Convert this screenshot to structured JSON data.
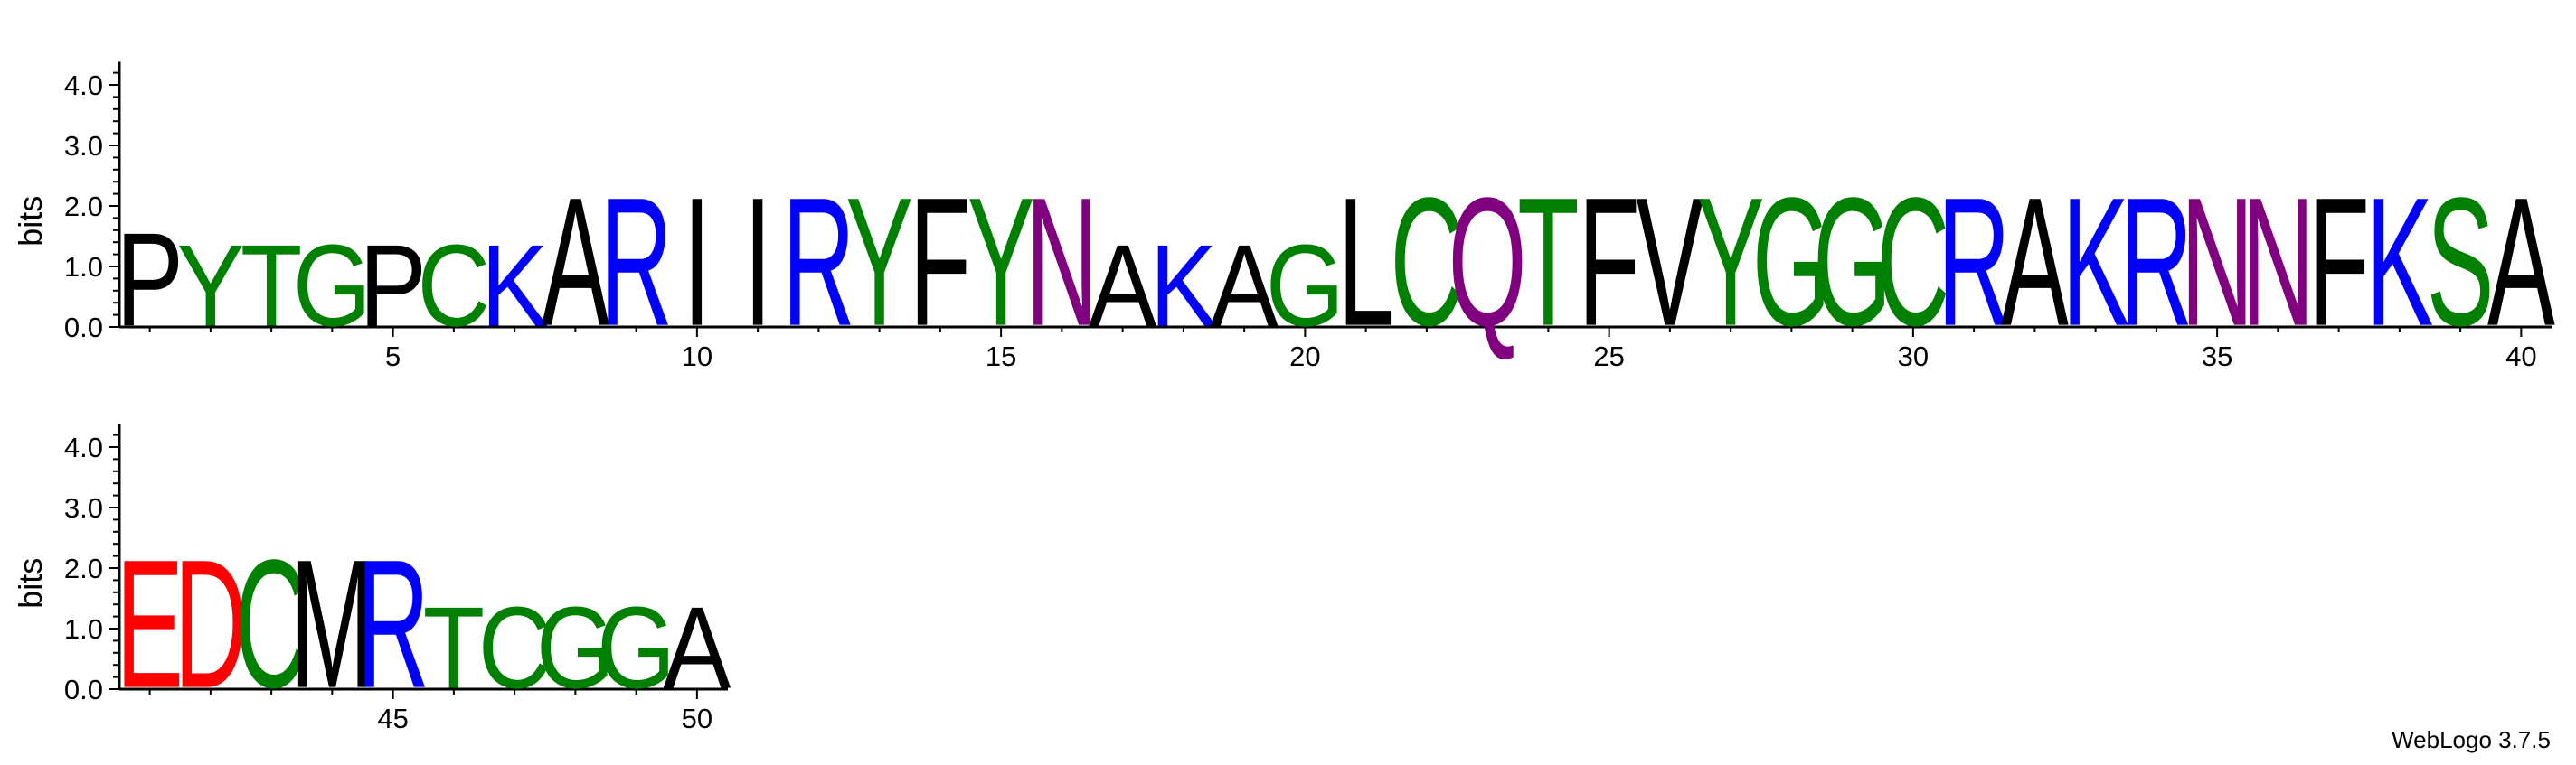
{
  "chart_data": {
    "type": "sequence-logo",
    "ylabel": "bits",
    "y_ticks": [
      "0.0",
      "1.0",
      "2.0",
      "3.0",
      "4.0"
    ],
    "ylim": [
      0,
      4.32
    ],
    "x_tick_values": [
      5,
      10,
      15,
      20,
      25,
      30,
      35,
      40,
      45,
      50
    ],
    "rows": [
      {
        "start": 1,
        "end": 40
      },
      {
        "start": 41,
        "end": 50
      }
    ],
    "colors": {
      "black": "#000000",
      "blue": "#0000ff",
      "green": "#008000",
      "purple": "#800080",
      "red": "#ff0000"
    },
    "positions": [
      {
        "pos": 1,
        "letter": "P",
        "color": "black",
        "bits": 1.6
      },
      {
        "pos": 2,
        "letter": "Y",
        "color": "green",
        "bits": 1.4
      },
      {
        "pos": 3,
        "letter": "T",
        "color": "green",
        "bits": 1.4
      },
      {
        "pos": 4,
        "letter": "G",
        "color": "green",
        "bits": 1.4
      },
      {
        "pos": 5,
        "letter": "P",
        "color": "black",
        "bits": 1.4
      },
      {
        "pos": 6,
        "letter": "C",
        "color": "green",
        "bits": 1.4
      },
      {
        "pos": 7,
        "letter": "K",
        "color": "blue",
        "bits": 1.4
      },
      {
        "pos": 8,
        "letter": "A",
        "color": "black",
        "bits": 2.2
      },
      {
        "pos": 9,
        "letter": "R",
        "color": "blue",
        "bits": 2.2
      },
      {
        "pos": 10,
        "letter": "I",
        "color": "black",
        "bits": 2.2
      },
      {
        "pos": 11,
        "letter": "I",
        "color": "black",
        "bits": 2.2
      },
      {
        "pos": 12,
        "letter": "R",
        "color": "blue",
        "bits": 2.2
      },
      {
        "pos": 13,
        "letter": "Y",
        "color": "green",
        "bits": 2.2
      },
      {
        "pos": 14,
        "letter": "F",
        "color": "black",
        "bits": 2.2
      },
      {
        "pos": 15,
        "letter": "Y",
        "color": "green",
        "bits": 2.2
      },
      {
        "pos": 16,
        "letter": "N",
        "color": "purple",
        "bits": 2.2
      },
      {
        "pos": 17,
        "letter": "A",
        "color": "black",
        "bits": 1.4
      },
      {
        "pos": 18,
        "letter": "K",
        "color": "blue",
        "bits": 1.4
      },
      {
        "pos": 19,
        "letter": "A",
        "color": "black",
        "bits": 1.4
      },
      {
        "pos": 20,
        "letter": "G",
        "color": "green",
        "bits": 1.4
      },
      {
        "pos": 21,
        "letter": "L",
        "color": "black",
        "bits": 2.2
      },
      {
        "pos": 22,
        "letter": "C",
        "color": "green",
        "bits": 2.2
      },
      {
        "pos": 23,
        "letter": "Q",
        "color": "purple",
        "bits": 2.2
      },
      {
        "pos": 24,
        "letter": "T",
        "color": "green",
        "bits": 2.2
      },
      {
        "pos": 25,
        "letter": "F",
        "color": "black",
        "bits": 2.2
      },
      {
        "pos": 26,
        "letter": "V",
        "color": "black",
        "bits": 2.2
      },
      {
        "pos": 27,
        "letter": "Y",
        "color": "green",
        "bits": 2.2
      },
      {
        "pos": 28,
        "letter": "G",
        "color": "green",
        "bits": 2.2
      },
      {
        "pos": 29,
        "letter": "G",
        "color": "green",
        "bits": 2.2
      },
      {
        "pos": 30,
        "letter": "C",
        "color": "green",
        "bits": 2.2
      },
      {
        "pos": 31,
        "letter": "R",
        "color": "blue",
        "bits": 2.2
      },
      {
        "pos": 32,
        "letter": "A",
        "color": "black",
        "bits": 2.2
      },
      {
        "pos": 33,
        "letter": "K",
        "color": "blue",
        "bits": 2.2
      },
      {
        "pos": 34,
        "letter": "R",
        "color": "blue",
        "bits": 2.2
      },
      {
        "pos": 35,
        "letter": "N",
        "color": "purple",
        "bits": 2.2
      },
      {
        "pos": 36,
        "letter": "N",
        "color": "purple",
        "bits": 2.2
      },
      {
        "pos": 37,
        "letter": "F",
        "color": "black",
        "bits": 2.2
      },
      {
        "pos": 38,
        "letter": "K",
        "color": "blue",
        "bits": 2.2
      },
      {
        "pos": 39,
        "letter": "S",
        "color": "green",
        "bits": 2.2
      },
      {
        "pos": 40,
        "letter": "A",
        "color": "black",
        "bits": 2.2
      },
      {
        "pos": 41,
        "letter": "E",
        "color": "red",
        "bits": 2.2
      },
      {
        "pos": 42,
        "letter": "D",
        "color": "red",
        "bits": 2.2
      },
      {
        "pos": 43,
        "letter": "C",
        "color": "green",
        "bits": 2.2
      },
      {
        "pos": 44,
        "letter": "M",
        "color": "black",
        "bits": 2.2
      },
      {
        "pos": 45,
        "letter": "R",
        "color": "blue",
        "bits": 2.2
      },
      {
        "pos": 46,
        "letter": "T",
        "color": "green",
        "bits": 1.4
      },
      {
        "pos": 47,
        "letter": "C",
        "color": "green",
        "bits": 1.4
      },
      {
        "pos": 48,
        "letter": "G",
        "color": "green",
        "bits": 1.4
      },
      {
        "pos": 49,
        "letter": "G",
        "color": "green",
        "bits": 1.4
      },
      {
        "pos": 50,
        "letter": "A",
        "color": "black",
        "bits": 1.4
      }
    ]
  },
  "footer": {
    "watermark": "WebLogo 3.7.5"
  }
}
